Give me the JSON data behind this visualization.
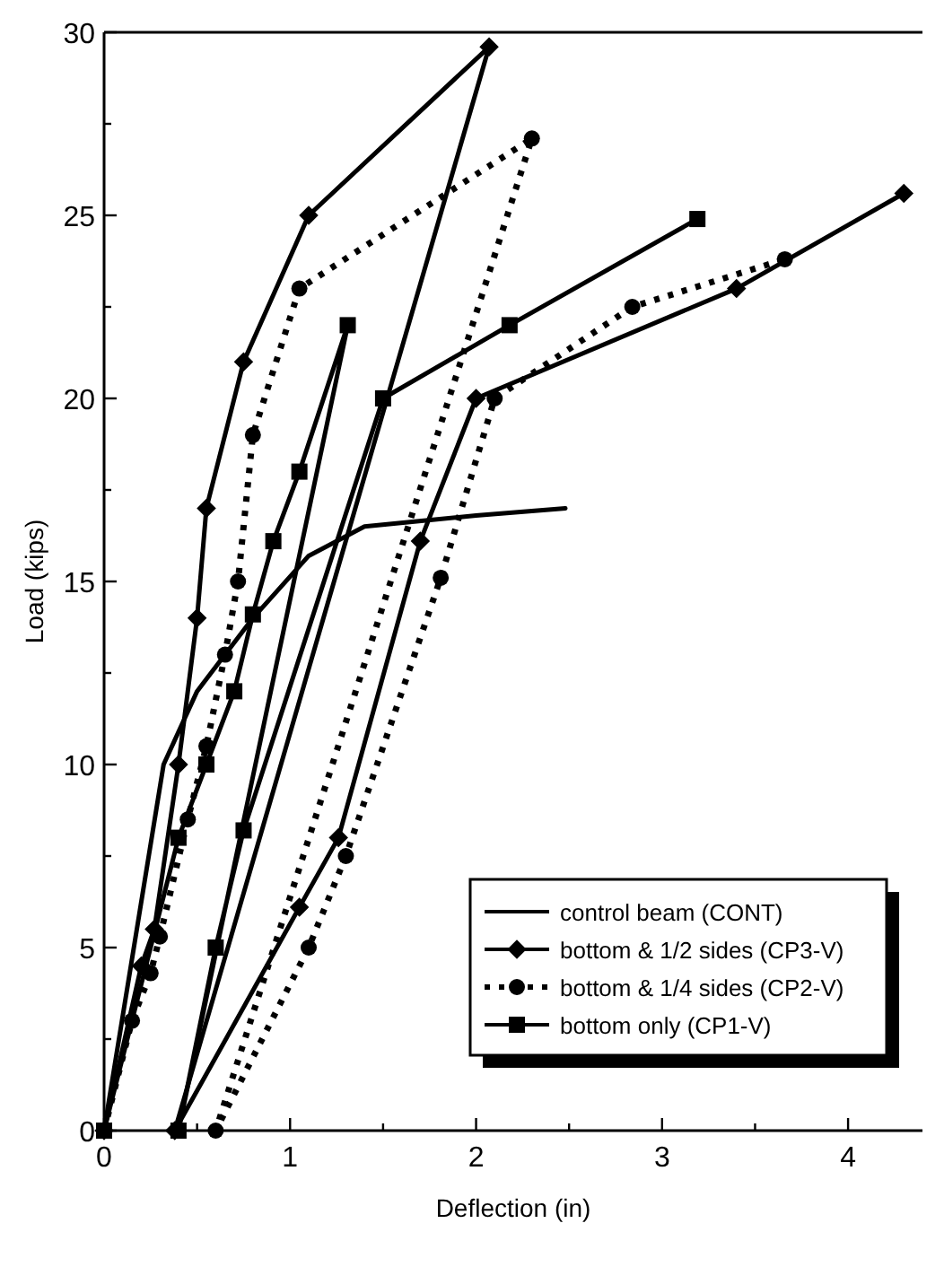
{
  "chart_data": {
    "type": "line",
    "xlabel": "Deflection (in)",
    "ylabel": "Load (kips)",
    "xlim": [
      0,
      4.4
    ],
    "ylim": [
      0,
      30
    ],
    "xticks": [
      0,
      {
        "value": 0.5,
        "label": null
      },
      1,
      {
        "value": 1.5,
        "label": null
      },
      2,
      {
        "value": 2.5,
        "label": null
      },
      3,
      {
        "value": 3.5,
        "label": null
      },
      4
    ],
    "yticks": [
      0,
      {
        "value": 2.5,
        "label": null
      },
      5,
      {
        "value": 7.5,
        "label": null
      },
      10,
      {
        "value": 12.5,
        "label": null
      },
      15,
      {
        "value": 17.5,
        "label": null
      },
      20,
      {
        "value": 22.5,
        "label": null
      },
      25,
      {
        "value": 27.5,
        "label": null
      },
      30
    ],
    "grid": false,
    "legend": "bottom right",
    "series": [
      {
        "name": "control beam (CONT)",
        "color": "#000000",
        "marker": "none",
        "line_style": "solid",
        "x": [
          0,
          0.32,
          0.5,
          0.8,
          1.1,
          1.4,
          2.0,
          2.48
        ],
        "values": [
          0,
          10,
          12,
          14,
          15.7,
          16.5,
          16.8,
          17
        ]
      },
      {
        "name": "bottom & 1/2 sides (CP3-V)",
        "color": "#000000",
        "marker": "diamond",
        "line_style": "solid",
        "x": [
          0,
          0.2,
          0.27,
          0.4,
          0.5,
          0.55,
          0.75,
          1.1,
          2.07,
          0.38,
          1.05,
          1.26,
          1.7,
          2.0,
          3.4,
          4.3
        ],
        "values": [
          0,
          4.5,
          5.5,
          10,
          14,
          17,
          21,
          25,
          29.6,
          0,
          6.1,
          8,
          16.1,
          20,
          23,
          25.6
        ]
      },
      {
        "name": "bottom & 1/4 sides (CP2-V)",
        "color": "#000000",
        "marker": "circle",
        "line_style": "dotted",
        "x": [
          0,
          0.15,
          0.25,
          0.3,
          0.45,
          0.55,
          0.65,
          0.72,
          0.8,
          1.05,
          2.3,
          0.6,
          1.1,
          1.3,
          1.81,
          2.1,
          2.84,
          3.66
        ],
        "values": [
          0,
          3,
          4.3,
          5.3,
          8.5,
          10.5,
          13,
          15,
          19,
          23,
          27.1,
          0,
          5,
          7.5,
          15.1,
          20,
          22.5,
          23.8
        ]
      },
      {
        "name": "bottom only (CP1-V)",
        "color": "#000000",
        "marker": "square",
        "line_style": "solid",
        "x": [
          0,
          0.4,
          0.55,
          0.7,
          0.8,
          0.91,
          1.05,
          1.31,
          0.4,
          0.6,
          0.75,
          1.5,
          2.18,
          3.19
        ],
        "values": [
          0,
          8,
          10,
          12,
          14.1,
          16.1,
          18,
          22,
          0,
          5,
          8.2,
          20,
          22,
          24.9
        ]
      }
    ]
  }
}
